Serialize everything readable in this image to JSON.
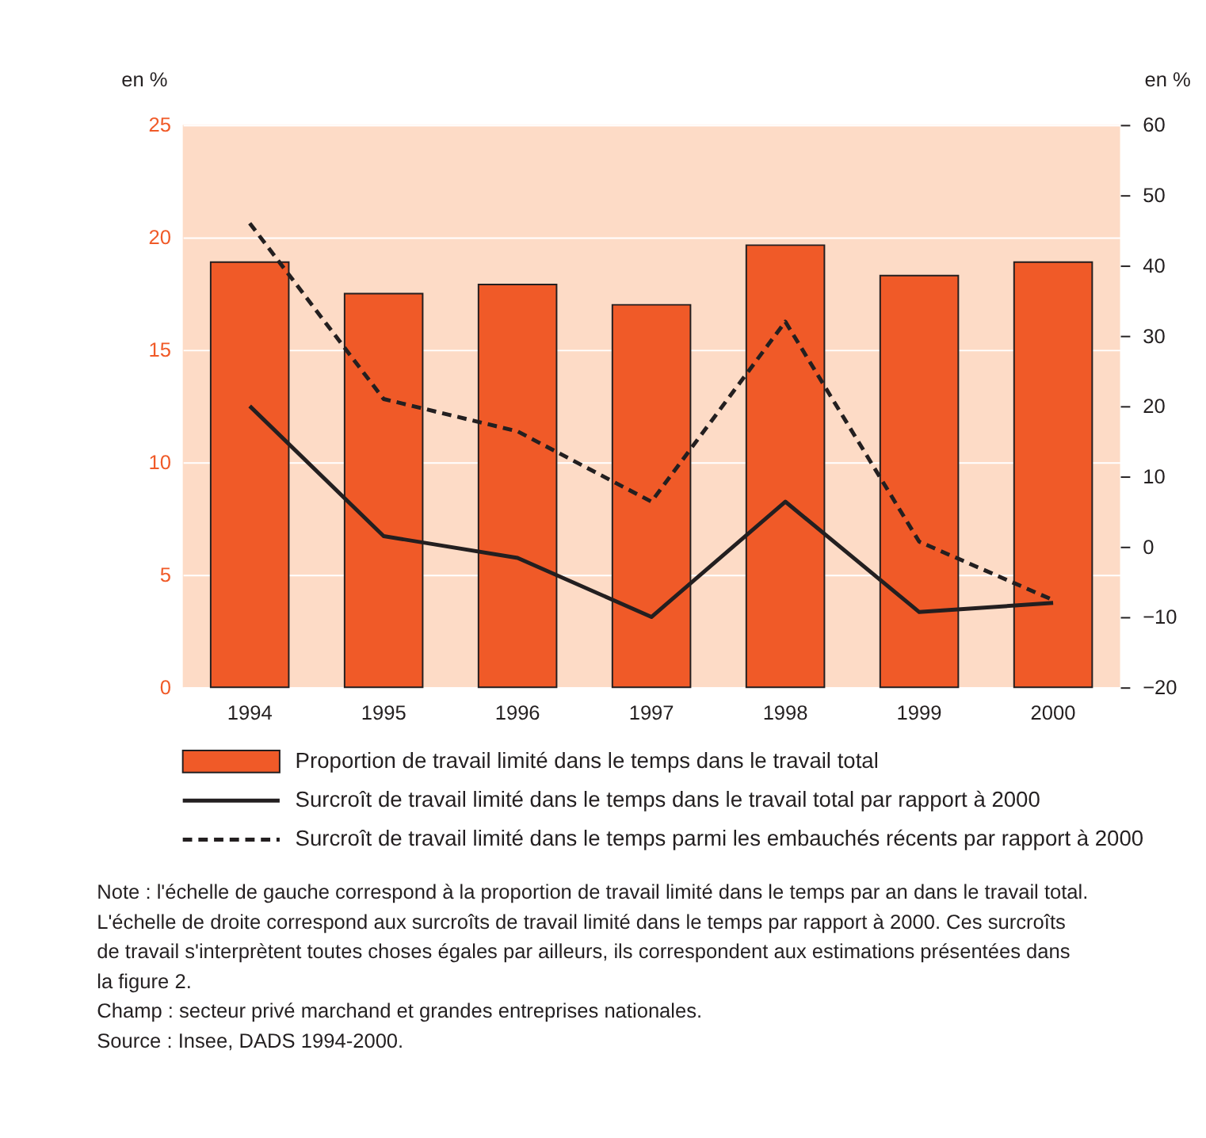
{
  "chart_data": {
    "type": "bar",
    "categories": [
      "1994",
      "1995",
      "1996",
      "1997",
      "1998",
      "1999",
      "2000"
    ],
    "series": [
      {
        "name": "Proportion de travail limité dans le temps dans le travail total",
        "color": "#f05a28",
        "values": [
          18.9,
          17.5,
          17.9,
          17.0,
          19.65,
          18.3,
          18.9
        ]
      },
      {
        "name": "Surcroît de travail limité dans le temps dans le travail total par rapport à 2000",
        "type": "line",
        "axis": "y2",
        "line_style": "solid",
        "color": "#231f20",
        "values": [
          20,
          1.5,
          -1.6,
          -10,
          6.4,
          -9.3,
          -8
        ]
      },
      {
        "name": "Surcroît de travail limité dans le temps parmi les embauchés récents par rapport à 2000",
        "type": "line",
        "axis": "y2",
        "line_style": "dashed",
        "color": "#231f20",
        "values": [
          46,
          21,
          16.4,
          6.4,
          32,
          0.7,
          -7.6
        ]
      }
    ],
    "ylabel": "en %",
    "y2label": "en %",
    "ylim": [
      0,
      25
    ],
    "yticks": [
      0,
      5,
      10,
      15,
      20,
      25
    ],
    "y2lim": [
      -20,
      60
    ],
    "y2ticks": [
      -20,
      -10,
      0,
      10,
      20,
      30,
      40,
      50,
      60
    ],
    "grid": "y",
    "legend": "bottom",
    "marker": "none",
    "annotations": [
      "Note : l'échelle de gauche correspond à la proportion de travail limité dans le temps par an dans le travail total.",
      "L'échelle de droite correspond aux surcroîts de travail limité dans le temps par rapport à 2000. Ces surcroîts",
      "de travail s'interprètent toutes choses égales par ailleurs, ils correspondent aux estimations présentées dans",
      "la figure 2.",
      "Champ : secteur privé marchand et grandes entreprises nationales.",
      "Source : Insee, DADS 1994-2000."
    ]
  }
}
